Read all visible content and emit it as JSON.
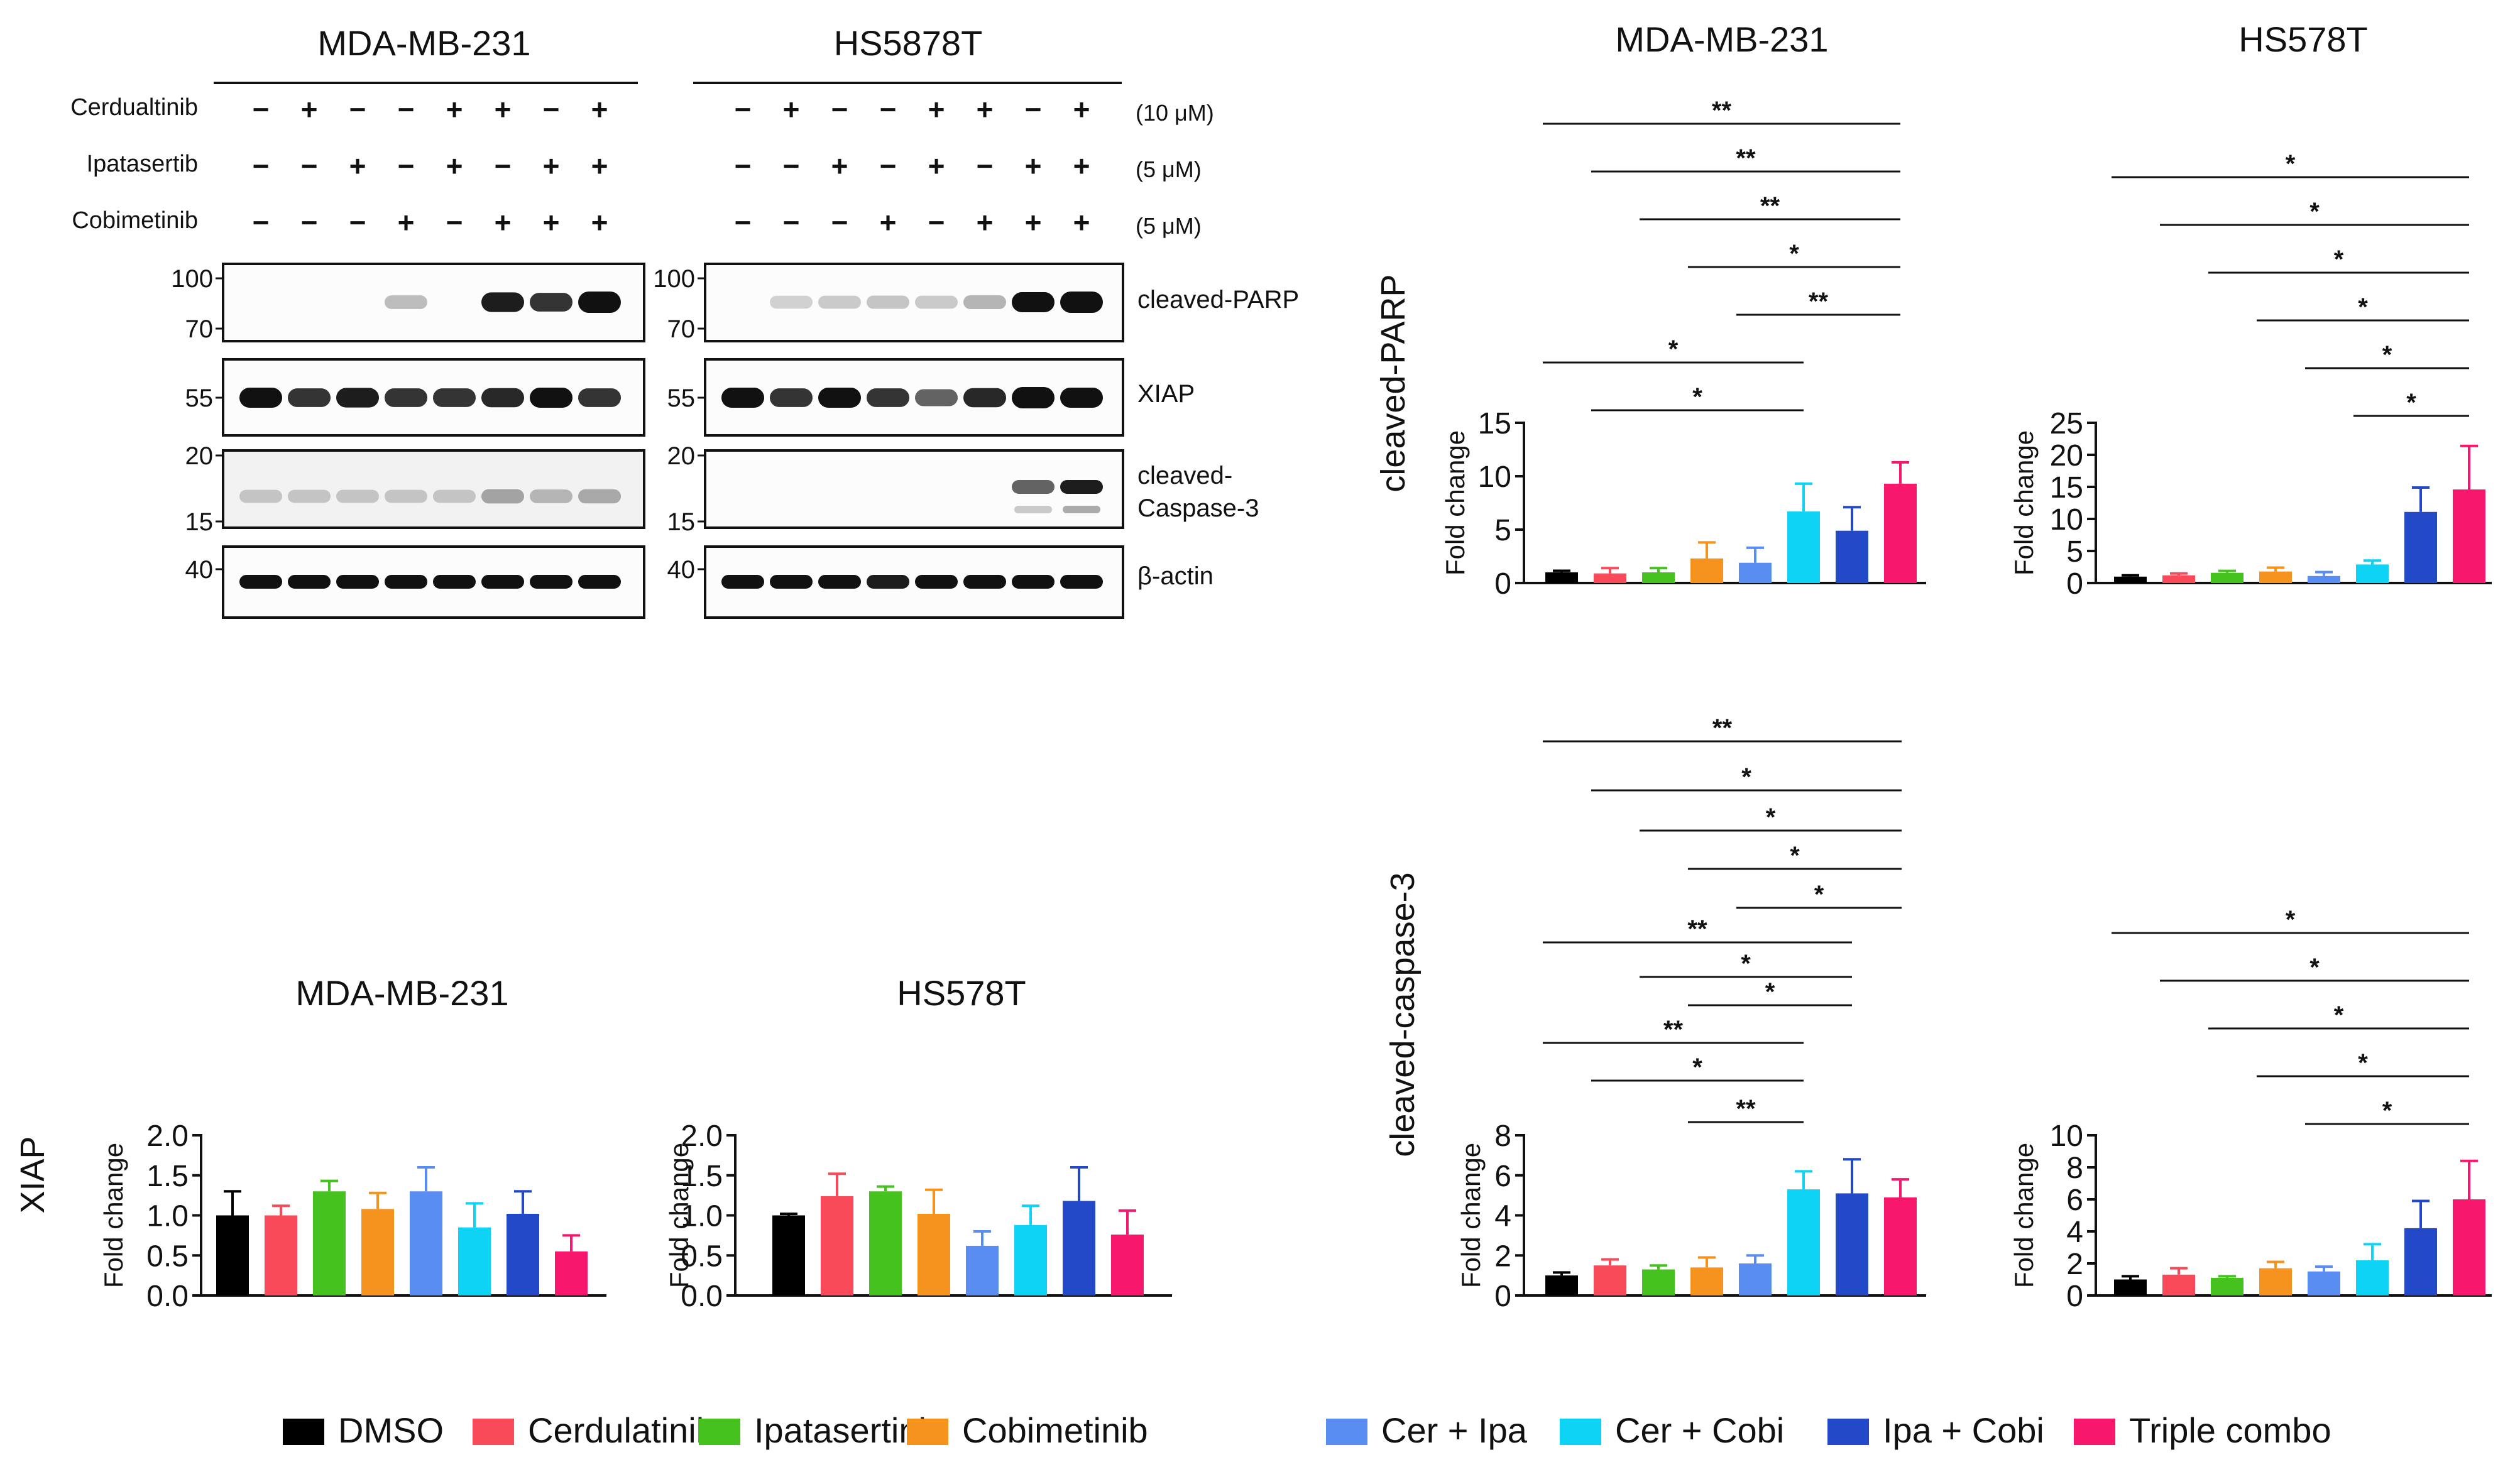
{
  "legend": [
    {
      "label": "DMSO",
      "color": "#000000"
    },
    {
      "label": "Cerdulatinib",
      "color": "#F94A5A"
    },
    {
      "label": "Ipatasertinb",
      "color": "#45C21E"
    },
    {
      "label": "Cobimetinib",
      "color": "#F6921E"
    },
    {
      "label": "Cer + Ipa",
      "color": "#5A8DF2"
    },
    {
      "label": "Cer + Cobi",
      "color": "#0FD3F5"
    },
    {
      "label": "Ipa + Cobi",
      "color": "#2349C8"
    },
    {
      "label": "Triple combo",
      "color": "#F7176C"
    }
  ],
  "blot": {
    "panels": [
      {
        "cell_line": "MDA-MB-231",
        "ladders": {
          "parp": [
            "100",
            "70"
          ],
          "xiap": [
            "55"
          ],
          "casp": [
            "20",
            "15"
          ],
          "actin": [
            "40"
          ]
        }
      },
      {
        "cell_line": "HS5878T",
        "ladders": {
          "parp": [
            "100",
            "70"
          ],
          "xiap": [
            "55"
          ],
          "casp": [
            "20",
            "15"
          ],
          "actin": [
            "40"
          ]
        }
      }
    ],
    "treatments": [
      {
        "name": "Cerdualtinib",
        "dose": "(10 μM)",
        "signs": [
          "−",
          "+",
          "−",
          "−",
          "+",
          "+",
          "−",
          "+"
        ]
      },
      {
        "name": "Ipatasertib",
        "dose": "(5 μM)",
        "signs": [
          "−",
          "−",
          "+",
          "−",
          "+",
          "−",
          "+",
          "+"
        ]
      },
      {
        "name": "Cobimetinib",
        "dose": "(5 μM)",
        "signs": [
          "−",
          "−",
          "−",
          "+",
          "−",
          "+",
          "+",
          "+"
        ]
      }
    ],
    "bands": [
      {
        "name": "cleaved-PARP",
        "lines": [
          "cleaved-PARP"
        ]
      },
      {
        "name": "XIAP",
        "lines": [
          "XIAP"
        ]
      },
      {
        "name": "cleaved-Caspase-3",
        "lines": [
          "cleaved-",
          "Caspase-3"
        ]
      },
      {
        "name": "beta-actin",
        "lines": [
          "β-actin"
        ]
      }
    ],
    "intensity": {
      "mda": {
        "parp": [
          0,
          0,
          0,
          0.12,
          0,
          0.8,
          0.7,
          1.0
        ],
        "xiap": [
          0.85,
          0.7,
          0.8,
          0.7,
          0.7,
          0.75,
          0.85,
          0.7
        ],
        "casp": [
          0.05,
          0.05,
          0.05,
          0.05,
          0.05,
          0.2,
          0.12,
          0.18
        ],
        "actin": [
          0.9,
          0.9,
          0.9,
          0.9,
          0.9,
          0.9,
          0.9,
          0.9
        ]
      },
      "hs": {
        "parp": [
          0,
          0.03,
          0.06,
          0.08,
          0.06,
          0.15,
          0.85,
          1.0
        ],
        "xiap": [
          0.85,
          0.7,
          0.85,
          0.7,
          0.5,
          0.75,
          1.0,
          0.85
        ],
        "casp": [
          0,
          0,
          0,
          0,
          0,
          0,
          0.5,
          0.8
        ],
        "actin": [
          0.9,
          0.85,
          0.9,
          0.8,
          0.9,
          0.9,
          0.9,
          0.9
        ]
      }
    }
  },
  "chart_data": [
    {
      "id": "parp-mda",
      "type": "bar",
      "title": "MDA-MB-231",
      "row_label": "cleaved-PARP",
      "ylabel": "Fold change",
      "categories": [
        "DMSO",
        "Cerdulatinib",
        "Ipatasertinb",
        "Cobimetinib",
        "Cer + Ipa",
        "Cer + Cobi",
        "Ipa + Cobi",
        "Triple combo"
      ],
      "values": [
        1,
        0.9,
        1,
        2.3,
        1.9,
        6.7,
        4.9,
        9.3
      ],
      "errors": [
        0.15,
        0.5,
        0.4,
        1.5,
        1.4,
        2.6,
        2.2,
        2.0
      ],
      "ylim": [
        0,
        15
      ],
      "yticks": [
        0,
        5,
        10,
        15
      ],
      "tick_labels": [
        "0",
        "5",
        "10",
        "15"
      ],
      "significance": [
        {
          "from": 0,
          "to": 7,
          "label": "**"
        },
        {
          "from": 1,
          "to": 7,
          "label": "**"
        },
        {
          "from": 2,
          "to": 7,
          "label": "**"
        },
        {
          "from": 3,
          "to": 7,
          "label": "*"
        },
        {
          "from": 4,
          "to": 7,
          "label": "**"
        },
        {
          "from": 0,
          "to": 5,
          "label": "*"
        },
        {
          "from": 1,
          "to": 5,
          "label": "*"
        }
      ]
    },
    {
      "id": "parp-hs",
      "type": "bar",
      "title": "HS578T",
      "ylabel": "Fold change",
      "categories": [
        "DMSO",
        "Cerdulatinib",
        "Ipatasertinb",
        "Cobimetinib",
        "Cer + Ipa",
        "Cer + Cobi",
        "Ipa + Cobi",
        "Triple combo"
      ],
      "values": [
        1,
        1.2,
        1.6,
        1.8,
        1.1,
        2.9,
        11.1,
        14.6
      ],
      "errors": [
        0.2,
        0.3,
        0.3,
        0.6,
        0.6,
        0.6,
        3.8,
        6.8
      ],
      "ylim": [
        0,
        25
      ],
      "yticks": [
        0,
        5,
        10,
        15,
        20,
        25
      ],
      "tick_labels": [
        "0",
        "5",
        "10",
        "15",
        "20",
        "25"
      ],
      "significance": [
        {
          "from": 0,
          "to": 7,
          "label": "*"
        },
        {
          "from": 1,
          "to": 7,
          "label": "*"
        },
        {
          "from": 2,
          "to": 7,
          "label": "*"
        },
        {
          "from": 3,
          "to": 7,
          "label": "*"
        },
        {
          "from": 4,
          "to": 7,
          "label": "*"
        },
        {
          "from": 5,
          "to": 7,
          "label": "*"
        }
      ]
    },
    {
      "id": "casp-mda",
      "type": "bar",
      "row_label": "cleaved-caspase-3",
      "ylabel": "Fold change",
      "categories": [
        "DMSO",
        "Cerdulatinib",
        "Ipatasertinb",
        "Cobimetinib",
        "Cer + Ipa",
        "Cer + Cobi",
        "Ipa + Cobi",
        "Triple combo"
      ],
      "values": [
        1,
        1.5,
        1.3,
        1.4,
        1.6,
        5.3,
        5.1,
        4.9
      ],
      "errors": [
        0.15,
        0.3,
        0.2,
        0.5,
        0.4,
        0.9,
        1.7,
        0.9
      ],
      "ylim": [
        0,
        8
      ],
      "yticks": [
        0,
        2,
        4,
        6,
        8
      ],
      "tick_labels": [
        "0",
        "2",
        "4",
        "6",
        "8"
      ],
      "significance": [
        {
          "from": 0,
          "to": 7,
          "label": "**"
        },
        {
          "from": 1,
          "to": 7,
          "label": "*"
        },
        {
          "from": 2,
          "to": 7,
          "label": "*"
        },
        {
          "from": 3,
          "to": 7,
          "label": "*"
        },
        {
          "from": 4,
          "to": 7,
          "label": "*"
        },
        {
          "from": 0,
          "to": 6,
          "label": "**"
        },
        {
          "from": 2,
          "to": 6,
          "label": "*"
        },
        {
          "from": 3,
          "to": 6,
          "label": "*"
        },
        {
          "from": 0,
          "to": 5,
          "label": "**"
        },
        {
          "from": 1,
          "to": 5,
          "label": "*"
        },
        {
          "from": 3,
          "to": 5,
          "label": "**"
        }
      ]
    },
    {
      "id": "casp-hs",
      "type": "bar",
      "ylabel": "Fold change",
      "categories": [
        "DMSO",
        "Cerdulatinib",
        "Ipatasertinb",
        "Cobimetinib",
        "Cer + Ipa",
        "Cer + Cobi",
        "Ipa + Cobi",
        "Triple combo"
      ],
      "values": [
        1,
        1.3,
        1.1,
        1.7,
        1.5,
        2.2,
        4.2,
        6.0
      ],
      "errors": [
        0.2,
        0.4,
        0.1,
        0.4,
        0.3,
        1.0,
        1.7,
        2.4
      ],
      "ylim": [
        0,
        10
      ],
      "yticks": [
        0,
        2,
        4,
        6,
        8,
        10
      ],
      "tick_labels": [
        "0",
        "2",
        "4",
        "6",
        "8",
        "10"
      ],
      "significance": [
        {
          "from": 0,
          "to": 7,
          "label": "*"
        },
        {
          "from": 1,
          "to": 7,
          "label": "*"
        },
        {
          "from": 2,
          "to": 7,
          "label": "*"
        },
        {
          "from": 3,
          "to": 7,
          "label": "*"
        },
        {
          "from": 4,
          "to": 7,
          "label": "*"
        }
      ]
    },
    {
      "id": "xiap-mda",
      "type": "bar",
      "title": "MDA-MB-231",
      "row_label": "XIAP",
      "ylabel": "Fold change",
      "categories": [
        "DMSO",
        "Cerdulatinib",
        "Ipatasertinb",
        "Cobimetinib",
        "Cer + Ipa",
        "Cer + Cobi",
        "Ipa + Cobi",
        "Triple combo"
      ],
      "values": [
        1.0,
        1.0,
        1.3,
        1.08,
        1.3,
        0.85,
        1.02,
        0.55
      ],
      "errors": [
        0.3,
        0.12,
        0.13,
        0.2,
        0.3,
        0.3,
        0.28,
        0.2
      ],
      "ylim": [
        0,
        2
      ],
      "yticks": [
        0,
        0.5,
        1,
        1.5,
        2
      ],
      "tick_labels": [
        "0.0",
        "0.5",
        "1.0",
        "1.5",
        "2.0"
      ],
      "significance": []
    },
    {
      "id": "xiap-hs",
      "type": "bar",
      "title": "HS578T",
      "ylabel": "Fold change",
      "categories": [
        "DMSO",
        "Cerdulatinib",
        "Ipatasertinb",
        "Cobimetinib",
        "Cer + Ipa",
        "Cer + Cobi",
        "Ipa + Cobi",
        "Triple combo"
      ],
      "values": [
        1.0,
        1.24,
        1.3,
        1.02,
        0.62,
        0.88,
        1.18,
        0.76
      ],
      "errors": [
        0.02,
        0.28,
        0.06,
        0.3,
        0.18,
        0.24,
        0.42,
        0.3
      ],
      "ylim": [
        0,
        2
      ],
      "yticks": [
        0,
        0.5,
        1,
        1.5,
        2
      ],
      "tick_labels": [
        "0.0",
        "0.5",
        "1.0",
        "1.5",
        "2.0"
      ],
      "significance": []
    }
  ]
}
